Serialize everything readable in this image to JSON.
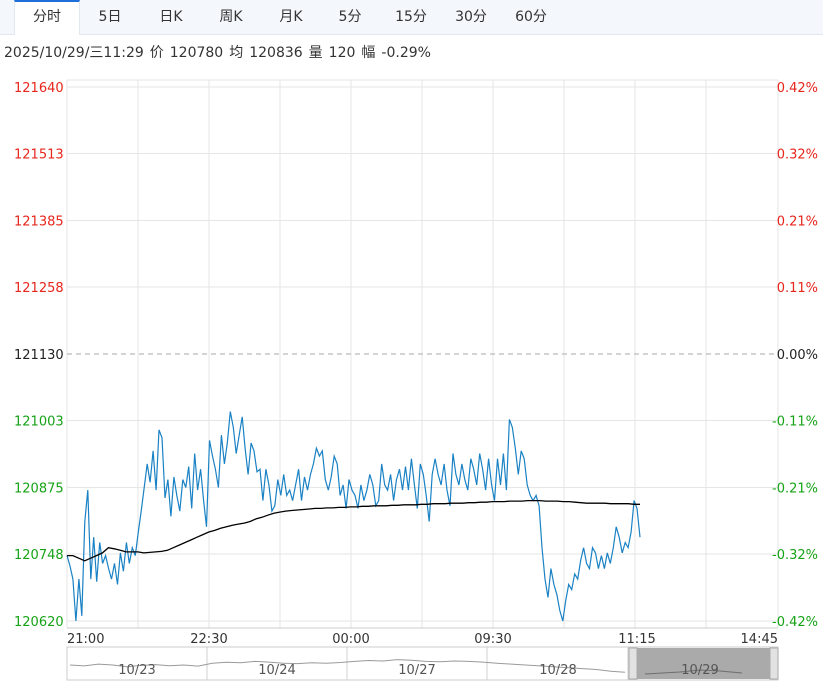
{
  "tabs": [
    {
      "label": "分时",
      "active": true
    },
    {
      "label": "5日",
      "active": false
    },
    {
      "label": "日K",
      "active": false
    },
    {
      "label": "周K",
      "active": false
    },
    {
      "label": "月K",
      "active": false
    },
    {
      "label": "5分",
      "active": false
    },
    {
      "label": "15分",
      "active": false
    },
    {
      "label": "30分",
      "active": false
    },
    {
      "label": "60分",
      "active": false
    }
  ],
  "info": {
    "datetime": "2025/10/29/三11:29",
    "price_label": "价",
    "price": "120780",
    "avg_label": "均",
    "avg": "120836",
    "vol_label": "量",
    "vol": "120",
    "chg_label": "幅",
    "chg": "-0.29%"
  },
  "colors": {
    "up": "#e8251b",
    "down": "#16a316",
    "price_line": "#1a82c4",
    "avg_line": "#000000",
    "grid": "#e6e6e6"
  },
  "chart_data": {
    "type": "line",
    "prev_close": 121130,
    "y_ticks": [
      121640,
      121513,
      121385,
      121258,
      121130,
      121003,
      120875,
      120748,
      120620
    ],
    "pct_ticks": [
      "0.42%",
      "0.32%",
      "0.21%",
      "0.11%",
      "0.00%",
      "-0.11%",
      "-0.21%",
      "-0.32%",
      "-0.42%"
    ],
    "ylim": [
      120620,
      121640
    ],
    "x_labels": [
      "21:00",
      "22:30",
      "00:00",
      "09:30",
      "11:15",
      "14:45"
    ],
    "series": [
      {
        "key": "price",
        "values": [
          120745,
          120725,
          120700,
          120620,
          120700,
          120630,
          120810,
          120870,
          120700,
          120780,
          120695,
          120770,
          120730,
          120745,
          120720,
          120700,
          120730,
          120690,
          120750,
          120715,
          120770,
          120730,
          120760,
          120745,
          120790,
          120830,
          120875,
          120920,
          120885,
          120945,
          120870,
          120985,
          120970,
          120855,
          120890,
          120820,
          120895,
          120860,
          120830,
          120890,
          120875,
          120915,
          120835,
          120940,
          120870,
          120910,
          120850,
          120800,
          120965,
          120935,
          120910,
          120875,
          120975,
          120920,
          120960,
          121020,
          120990,
          120940,
          120975,
          121010,
          120950,
          120900,
          120960,
          120945,
          120905,
          120910,
          120850,
          120910,
          120880,
          120830,
          120840,
          120890,
          120860,
          120900,
          120860,
          120870,
          120850,
          120880,
          120910,
          120850,
          120895,
          120870,
          120900,
          120920,
          120950,
          120935,
          120945,
          120890,
          120870,
          120895,
          120935,
          120920,
          120860,
          120880,
          120835,
          120890,
          120870,
          120860,
          120835,
          120880,
          120850,
          120870,
          120900,
          120880,
          120840,
          120850,
          120920,
          120880,
          120870,
          120900,
          120850,
          120890,
          120910,
          120870,
          120915,
          120870,
          120930,
          120880,
          120835,
          120920,
          120900,
          120860,
          120810,
          120900,
          120930,
          120900,
          120880,
          120920,
          120870,
          120840,
          120940,
          120900,
          120880,
          120920,
          120890,
          120870,
          120930,
          120910,
          120880,
          120940,
          120910,
          120870,
          120930,
          120880,
          120850,
          120930,
          120880,
          120940,
          120870,
          121005,
          120990,
          120950,
          120900,
          120945,
          120930,
          120880,
          120860,
          120850,
          120860,
          120840,
          120760,
          120700,
          120665,
          120720,
          120690,
          120670,
          120640,
          120620,
          120660,
          120690,
          120680,
          120710,
          120700,
          120735,
          120760,
          120730,
          120720,
          120760,
          120750,
          120720,
          120745,
          120720,
          120750,
          120730,
          120760,
          120800,
          120780,
          120750,
          120770,
          120760,
          120790,
          120850,
          120835,
          120780
        ]
      },
      {
        "key": "avg",
        "values": [
          120745,
          120745,
          120740,
          120735,
          120740,
          120745,
          120750,
          120760,
          120758,
          120755,
          120752,
          120752,
          120752,
          120750,
          120751,
          120752,
          120753,
          120755,
          120760,
          120765,
          120770,
          120775,
          120780,
          120785,
          120790,
          120793,
          120797,
          120800,
          120803,
          120805,
          120807,
          120810,
          120815,
          120818,
          120822,
          120826,
          120828,
          120830,
          120831,
          120832,
          120833,
          120834,
          120835,
          120835,
          120836,
          120836,
          120837,
          120837,
          120838,
          120838,
          120839,
          120839,
          120840,
          120840,
          120840,
          120841,
          120841,
          120842,
          120842,
          120842,
          120843,
          120843,
          120844,
          120844,
          120844,
          120845,
          120845,
          120845,
          120846,
          120846,
          120847,
          120847,
          120848,
          120848,
          120848,
          120849,
          120849,
          120849,
          120850,
          120850,
          120850,
          120849,
          120849,
          120849,
          120848,
          120848,
          120847,
          120846,
          120845,
          120845,
          120845,
          120845,
          120844,
          120844,
          120844,
          120844,
          120843,
          120843
        ]
      }
    ],
    "range_strip": {
      "labels": [
        "10/23",
        "10/24",
        "10/27",
        "10/28",
        "10/29"
      ],
      "selected": "10/29"
    }
  }
}
